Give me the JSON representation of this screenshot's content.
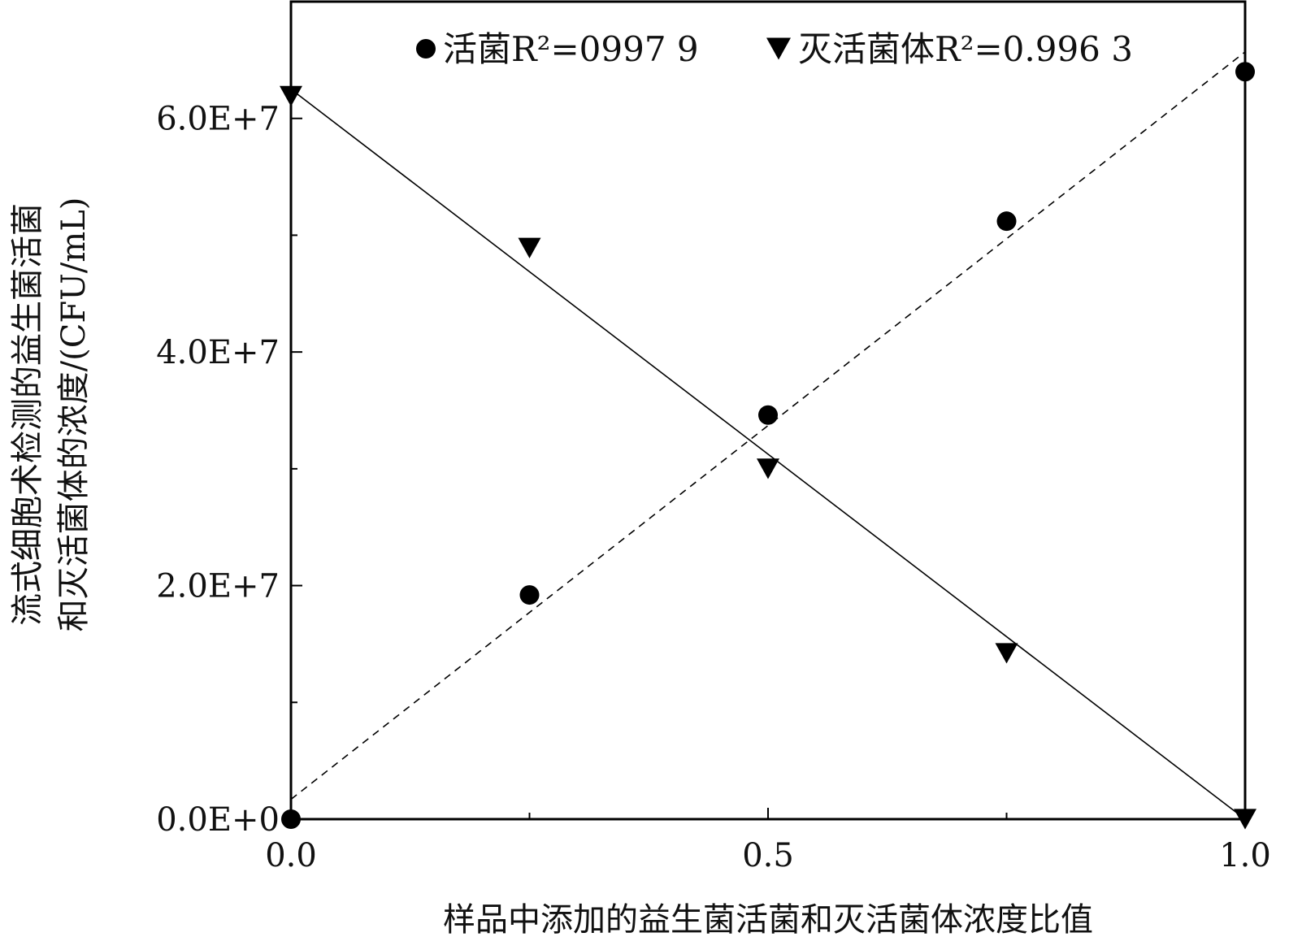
{
  "chart_data": {
    "type": "scatter",
    "xlabel": "样品中添加的益生菌活菌和灭活菌体浓度比值",
    "ylabel_line1": "流式细胞术检测的益生菌活菌",
    "ylabel_line2": "和灭活菌体的浓度/(CFU/mL)",
    "xlim": [
      0,
      1
    ],
    "ylim": [
      0,
      70000000
    ],
    "x_ticks": [
      0,
      0.5,
      1
    ],
    "x_tick_labels": [
      "0.0",
      "0.5",
      "1.0"
    ],
    "x_minor_ticks": [
      0.25,
      0.75
    ],
    "y_ticks": [
      0,
      20000000,
      40000000,
      60000000
    ],
    "y_tick_labels": [
      "0.0E+0",
      "2.0E+7",
      "4.0E+7",
      "6.0E+7"
    ],
    "y_minor_ticks": [
      10000000,
      30000000,
      50000000
    ],
    "legend_position": "top",
    "series": [
      {
        "name": "活菌",
        "r2_label": "R²=0997 9",
        "marker": "circle",
        "x": [
          0,
          0.25,
          0.5,
          0.75,
          1.0
        ],
        "y": [
          0,
          19200000,
          34600000,
          51200000,
          64000000
        ],
        "fit": {
          "style": "dashed",
          "x": [
            0,
            1
          ],
          "y": [
            1700000,
            65700000
          ]
        }
      },
      {
        "name": "灭活菌体",
        "r2_label": "R²=0.996 3",
        "marker": "triangle-down",
        "x": [
          0,
          0.25,
          0.5,
          0.75,
          1.0
        ],
        "y": [
          61900000,
          48900000,
          30000000,
          14200000,
          0
        ],
        "fit": {
          "style": "solid",
          "x": [
            0,
            1
          ],
          "y": [
            62500000,
            0
          ]
        }
      }
    ]
  }
}
